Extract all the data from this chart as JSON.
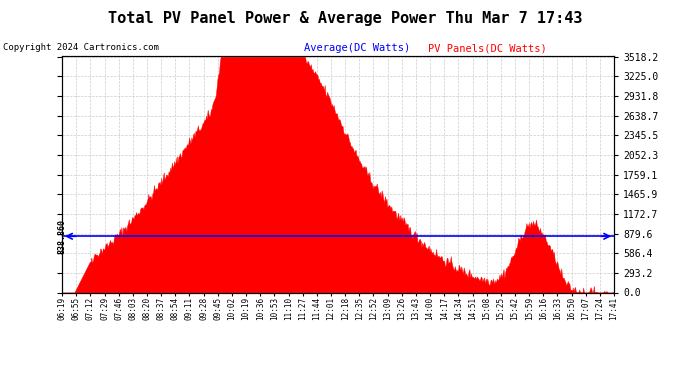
{
  "title": "Total PV Panel Power & Average Power Thu Mar 7 17:43",
  "copyright": "Copyright 2024 Cartronics.com",
  "legend_avg": "Average(DC Watts)",
  "legend_pv": "PV Panels(DC Watts)",
  "avg_value": 838.86,
  "avg_label": "838.860",
  "ymax": 3518.2,
  "ymin": 0.0,
  "yticks": [
    0.0,
    293.2,
    586.4,
    879.6,
    1172.7,
    1465.9,
    1759.1,
    2052.3,
    2345.5,
    2638.7,
    2931.8,
    3225.0,
    3518.2
  ],
  "x_labels": [
    "06:19",
    "06:55",
    "07:12",
    "07:29",
    "07:46",
    "08:03",
    "08:20",
    "08:37",
    "08:54",
    "09:11",
    "09:28",
    "09:45",
    "10:02",
    "10:19",
    "10:36",
    "10:53",
    "11:10",
    "11:27",
    "11:44",
    "12:01",
    "12:18",
    "12:35",
    "12:52",
    "13:09",
    "13:26",
    "13:43",
    "14:00",
    "14:17",
    "14:34",
    "14:51",
    "15:08",
    "15:25",
    "15:42",
    "15:59",
    "16:16",
    "16:33",
    "16:50",
    "17:07",
    "17:24",
    "17:41"
  ],
  "bg_color": "#ffffff",
  "fill_color": "#ff0000",
  "avg_line_color": "#0000ff",
  "grid_color": "#cccccc",
  "title_color": "#000000",
  "copyright_color": "#000000",
  "legend_avg_color": "#0000ff",
  "legend_pv_color": "#ff0000"
}
